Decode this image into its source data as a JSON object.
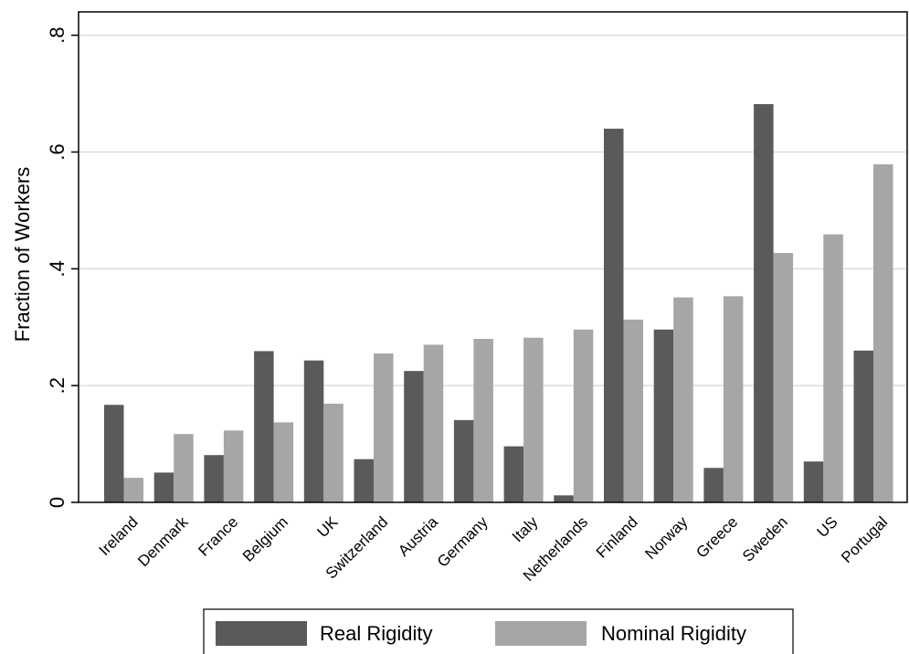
{
  "chart_data": {
    "type": "bar",
    "categories": [
      "Ireland",
      "Denmark",
      "France",
      "Belgium",
      "UK",
      "Switzerland",
      "Austria",
      "Germany",
      "Italy",
      "Netherlands",
      "Finland",
      "Norway",
      "Greece",
      "Sweden",
      "US",
      "Portugal"
    ],
    "series": [
      {
        "name": "Real Rigidity",
        "color": "#5a5a5a",
        "values": [
          0.167,
          0.051,
          0.081,
          0.259,
          0.243,
          0.074,
          0.225,
          0.141,
          0.096,
          0.012,
          0.64,
          0.296,
          0.059,
          0.682,
          0.07,
          0.26
        ]
      },
      {
        "name": "Nominal Rigidity",
        "color": "#a6a6a6",
        "values": [
          0.042,
          0.117,
          0.123,
          0.137,
          0.169,
          0.255,
          0.27,
          0.28,
          0.282,
          0.296,
          0.313,
          0.351,
          0.353,
          0.427,
          0.459,
          0.579
        ]
      }
    ],
    "title": "",
    "xlabel": "",
    "ylabel": "Fraction of Workers",
    "ylim": [
      0,
      0.8
    ],
    "yticks": [
      0,
      0.2,
      0.4,
      0.6,
      0.8
    ],
    "ytick_labels": [
      "0",
      ".2",
      ".4",
      ".6",
      ".8"
    ],
    "grid": true,
    "legend_position": "bottom"
  }
}
